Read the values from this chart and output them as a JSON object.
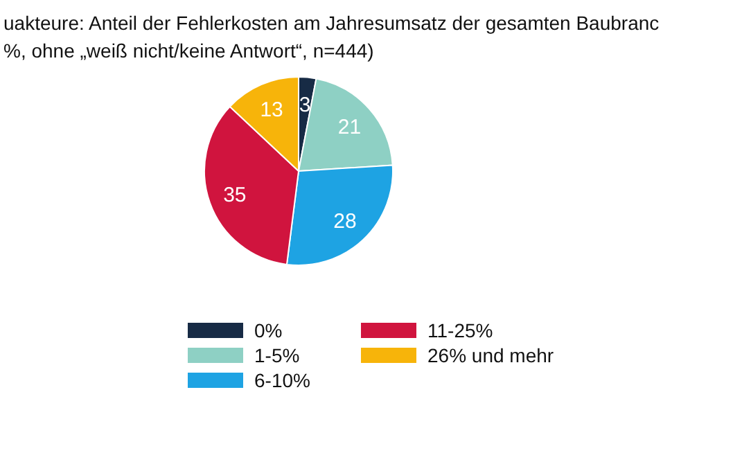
{
  "chart_data": {
    "type": "pie",
    "title": "uakteure: Anteil der Fehlerkosten am Jahresumsatz der gesamten Baubranc",
    "subtitle": "%, ohne „weiß nicht/keine Antwort“, n=444)",
    "categories": [
      "0%",
      "1-5%",
      "6-10%",
      "11-25%",
      "26% und mehr"
    ],
    "values": [
      3,
      21,
      28,
      35,
      13
    ],
    "colors": [
      "#172b45",
      "#8ed0c4",
      "#1ea3e3",
      "#d0143e",
      "#f7b40a"
    ],
    "data_labels": true,
    "legend": "bottom"
  }
}
